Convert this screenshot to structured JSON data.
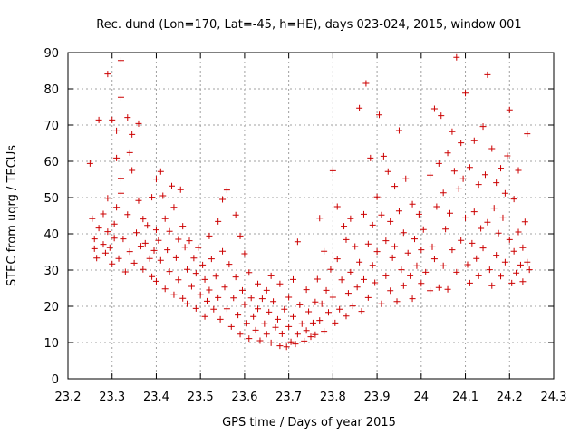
{
  "chart_data": {
    "type": "scatter",
    "title": "Rec. dund (Lon=170, Lat=-45, h=HE), days 023-024, 2015, window 001",
    "xlabel": "GPS time / Days of year 2015",
    "ylabel": "STEC from uqrg / TECUs",
    "xlim": [
      23.2,
      24.3
    ],
    "ylim": [
      0,
      90
    ],
    "xticks": [
      23.2,
      23.3,
      23.4,
      23.5,
      23.6,
      23.7,
      23.8,
      23.9,
      24.0,
      24.1,
      24.2,
      24.3
    ],
    "xtick_labels": [
      "23.2",
      "23.3",
      "23.4",
      "23.5",
      "23.6",
      "23.7",
      "23.8",
      "23.9",
      "24",
      "24.1",
      "24.2",
      "24.3"
    ],
    "yticks": [
      0,
      10,
      20,
      30,
      40,
      50,
      60,
      70,
      80,
      90
    ],
    "ytick_labels": [
      "0",
      "10",
      "20",
      "30",
      "40",
      "50",
      "60",
      "70",
      "80",
      "90"
    ],
    "grid": true,
    "marker": "+",
    "marker_color": "#cc0000",
    "series": [
      {
        "name": "STEC",
        "points": [
          [
            23.25,
            59.4
          ],
          [
            23.255,
            44.2
          ],
          [
            23.26,
            38.6
          ],
          [
            23.26,
            35.9
          ],
          [
            23.265,
            33.3
          ],
          [
            23.27,
            71.4
          ],
          [
            23.27,
            41.6
          ],
          [
            23.28,
            45.5
          ],
          [
            23.28,
            37.1
          ],
          [
            23.285,
            34.7
          ],
          [
            23.29,
            84.1
          ],
          [
            23.29,
            49.8
          ],
          [
            23.29,
            40.6
          ],
          [
            23.295,
            36.2
          ],
          [
            23.3,
            71.4
          ],
          [
            23.3,
            31.7
          ],
          [
            23.305,
            42.7
          ],
          [
            23.305,
            38.8
          ],
          [
            23.31,
            68.4
          ],
          [
            23.31,
            60.9
          ],
          [
            23.31,
            47.3
          ],
          [
            23.315,
            33.2
          ],
          [
            23.32,
            87.8
          ],
          [
            23.32,
            77.7
          ],
          [
            23.32,
            55.3
          ],
          [
            23.32,
            51.2
          ],
          [
            23.325,
            38.6
          ],
          [
            23.33,
            29.5
          ],
          [
            23.335,
            72.1
          ],
          [
            23.335,
            45.3
          ],
          [
            23.34,
            62.4
          ],
          [
            23.34,
            35.1
          ],
          [
            23.345,
            67.4
          ],
          [
            23.345,
            57.5
          ],
          [
            23.35,
            31.9
          ],
          [
            23.355,
            40.3
          ],
          [
            23.36,
            70.4
          ],
          [
            23.36,
            49.2
          ],
          [
            23.365,
            36.6
          ],
          [
            23.37,
            44.1
          ],
          [
            23.37,
            30.2
          ],
          [
            23.375,
            37.4
          ],
          [
            23.38,
            42.3
          ],
          [
            23.385,
            33.2
          ],
          [
            23.39,
            50.1
          ],
          [
            23.39,
            28.2
          ],
          [
            23.395,
            35.4
          ],
          [
            23.4,
            55.1
          ],
          [
            23.4,
            41.1
          ],
          [
            23.4,
            26.9
          ],
          [
            23.405,
            38.2
          ],
          [
            23.41,
            57.2
          ],
          [
            23.41,
            32.7
          ],
          [
            23.415,
            50.5
          ],
          [
            23.42,
            44.2
          ],
          [
            23.42,
            24.8
          ],
          [
            23.425,
            35.6
          ],
          [
            23.43,
            40.7
          ],
          [
            23.43,
            29.6
          ],
          [
            23.435,
            53.2
          ],
          [
            23.44,
            47.3
          ],
          [
            23.44,
            23.2
          ],
          [
            23.445,
            33.4
          ],
          [
            23.45,
            38.5
          ],
          [
            23.45,
            27.3
          ],
          [
            23.455,
            52.2
          ],
          [
            23.46,
            42.1
          ],
          [
            23.46,
            22.2
          ],
          [
            23.465,
            36.3
          ],
          [
            23.47,
            30.2
          ],
          [
            23.47,
            20.7
          ],
          [
            23.475,
            38.1
          ],
          [
            23.48,
            25.5
          ],
          [
            23.485,
            33.3
          ],
          [
            23.49,
            29.1
          ],
          [
            23.49,
            19.4
          ],
          [
            23.495,
            36.2
          ],
          [
            23.5,
            23.2
          ],
          [
            23.505,
            31.4
          ],
          [
            23.51,
            27.4
          ],
          [
            23.51,
            17.2
          ],
          [
            23.515,
            21.4
          ],
          [
            23.52,
            39.4
          ],
          [
            23.52,
            24.5
          ],
          [
            23.525,
            33.1
          ],
          [
            23.53,
            19.2
          ],
          [
            23.535,
            28.3
          ],
          [
            23.54,
            43.4
          ],
          [
            23.54,
            22.4
          ],
          [
            23.545,
            16.4
          ],
          [
            23.55,
            49.5
          ],
          [
            23.55,
            35.2
          ],
          [
            23.555,
            25.3
          ],
          [
            23.56,
            52.1
          ],
          [
            23.56,
            19.3
          ],
          [
            23.565,
            31.6
          ],
          [
            23.57,
            14.4
          ],
          [
            23.575,
            22.3
          ],
          [
            23.58,
            45.2
          ],
          [
            23.58,
            28.1
          ],
          [
            23.585,
            17.6
          ],
          [
            23.59,
            39.4
          ],
          [
            23.59,
            12.3
          ],
          [
            23.595,
            24.4
          ],
          [
            23.6,
            34.5
          ],
          [
            23.6,
            20.5
          ],
          [
            23.605,
            15.3
          ],
          [
            23.61,
            29.3
          ],
          [
            23.61,
            11.1
          ],
          [
            23.615,
            22.3
          ],
          [
            23.62,
            17.2
          ],
          [
            23.625,
            13.4
          ],
          [
            23.63,
            26.2
          ],
          [
            23.63,
            19.3
          ],
          [
            23.635,
            10.5
          ],
          [
            23.64,
            22.1
          ],
          [
            23.645,
            15.2
          ],
          [
            23.65,
            24.4
          ],
          [
            23.65,
            12.3
          ],
          [
            23.655,
            18.4
          ],
          [
            23.66,
            28.4
          ],
          [
            23.66,
            9.9
          ],
          [
            23.665,
            21.3
          ],
          [
            23.67,
            14.2
          ],
          [
            23.675,
            16.4
          ],
          [
            23.68,
            26.2
          ],
          [
            23.68,
            9.1
          ],
          [
            23.685,
            12.4
          ],
          [
            23.69,
            19.2
          ],
          [
            23.695,
            8.8
          ],
          [
            23.7,
            22.5
          ],
          [
            23.7,
            14.4
          ],
          [
            23.705,
            10.2
          ],
          [
            23.71,
            27.4
          ],
          [
            23.71,
            17.2
          ],
          [
            23.715,
            9.6
          ],
          [
            23.72,
            37.8
          ],
          [
            23.72,
            12.3
          ],
          [
            23.725,
            20.4
          ],
          [
            23.73,
            15.2
          ],
          [
            23.735,
            10.4
          ],
          [
            23.74,
            24.6
          ],
          [
            23.74,
            13.3
          ],
          [
            23.745,
            18.5
          ],
          [
            23.75,
            11.6
          ],
          [
            23.755,
            15.4
          ],
          [
            23.76,
            21.2
          ],
          [
            23.76,
            12.2
          ],
          [
            23.765,
            27.5
          ],
          [
            23.77,
            44.3
          ],
          [
            23.77,
            16.1
          ],
          [
            23.775,
            20.7
          ],
          [
            23.78,
            35.2
          ],
          [
            23.78,
            13.1
          ],
          [
            23.785,
            24.4
          ],
          [
            23.79,
            18.3
          ],
          [
            23.795,
            30.2
          ],
          [
            23.8,
            57.4
          ],
          [
            23.8,
            22.5
          ],
          [
            23.805,
            15.4
          ],
          [
            23.81,
            47.5
          ],
          [
            23.81,
            33.1
          ],
          [
            23.815,
            19.2
          ],
          [
            23.82,
            27.3
          ],
          [
            23.825,
            42.1
          ],
          [
            23.83,
            38.4
          ],
          [
            23.83,
            17.3
          ],
          [
            23.835,
            23.6
          ],
          [
            23.84,
            44.2
          ],
          [
            23.84,
            29.4
          ],
          [
            23.845,
            20.1
          ],
          [
            23.85,
            36.5
          ],
          [
            23.855,
            25.3
          ],
          [
            23.86,
            74.7
          ],
          [
            23.86,
            32.2
          ],
          [
            23.865,
            18.6
          ],
          [
            23.87,
            45.4
          ],
          [
            23.87,
            27.4
          ],
          [
            23.875,
            81.5
          ],
          [
            23.88,
            37.2
          ],
          [
            23.88,
            22.4
          ],
          [
            23.885,
            60.9
          ],
          [
            23.89,
            42.4
          ],
          [
            23.89,
            31.3
          ],
          [
            23.895,
            26.5
          ],
          [
            23.9,
            50.2
          ],
          [
            23.9,
            35.1
          ],
          [
            23.905,
            72.8
          ],
          [
            23.91,
            45.2
          ],
          [
            23.91,
            20.7
          ],
          [
            23.915,
            61.4
          ],
          [
            23.92,
            38.1
          ],
          [
            23.92,
            28.4
          ],
          [
            23.925,
            57.2
          ],
          [
            23.93,
            43.4
          ],
          [
            23.93,
            24.3
          ],
          [
            23.935,
            33.4
          ],
          [
            23.94,
            53.1
          ],
          [
            23.94,
            36.5
          ],
          [
            23.945,
            21.3
          ],
          [
            23.95,
            68.5
          ],
          [
            23.95,
            46.3
          ],
          [
            23.955,
            30.1
          ],
          [
            23.96,
            40.3
          ],
          [
            23.96,
            25.7
          ],
          [
            23.965,
            55.2
          ],
          [
            23.97,
            34.7
          ],
          [
            23.975,
            28.4
          ],
          [
            23.98,
            48.2
          ],
          [
            23.98,
            22.1
          ],
          [
            23.985,
            38.6
          ],
          [
            23.99,
            31.2
          ],
          [
            23.995,
            45.4
          ],
          [
            24.0,
            35.6
          ],
          [
            24.0,
            26.3
          ],
          [
            24.005,
            41.2
          ],
          [
            24.01,
            29.4
          ],
          [
            24.02,
            56.2
          ],
          [
            24.02,
            24.3
          ],
          [
            24.025,
            36.4
          ],
          [
            24.03,
            74.5
          ],
          [
            24.03,
            33.1
          ],
          [
            24.035,
            47.5
          ],
          [
            24.04,
            59.4
          ],
          [
            24.04,
            25.2
          ],
          [
            24.045,
            72.6
          ],
          [
            24.05,
            51.3
          ],
          [
            24.05,
            31.2
          ],
          [
            24.055,
            41.3
          ],
          [
            24.06,
            62.3
          ],
          [
            24.06,
            24.7
          ],
          [
            24.065,
            45.7
          ],
          [
            24.07,
            68.2
          ],
          [
            24.07,
            35.6
          ],
          [
            24.075,
            57.3
          ],
          [
            24.08,
            88.7
          ],
          [
            24.08,
            29.4
          ],
          [
            24.085,
            52.4
          ],
          [
            24.09,
            65.1
          ],
          [
            24.09,
            38.2
          ],
          [
            24.095,
            55.2
          ],
          [
            24.1,
            78.8
          ],
          [
            24.1,
            44.4
          ],
          [
            24.105,
            31.5
          ],
          [
            24.11,
            58.3
          ],
          [
            24.11,
            26.4
          ],
          [
            24.115,
            37.4
          ],
          [
            24.12,
            65.7
          ],
          [
            24.12,
            46.1
          ],
          [
            24.125,
            33.2
          ],
          [
            24.13,
            53.6
          ],
          [
            24.13,
            28.4
          ],
          [
            24.135,
            41.5
          ],
          [
            24.14,
            69.6
          ],
          [
            24.14,
            36.1
          ],
          [
            24.145,
            56.3
          ],
          [
            24.15,
            83.9
          ],
          [
            24.15,
            43.2
          ],
          [
            24.155,
            30.1
          ],
          [
            24.16,
            63.5
          ],
          [
            24.16,
            25.7
          ],
          [
            24.165,
            47.1
          ],
          [
            24.17,
            54.1
          ],
          [
            24.17,
            34.1
          ],
          [
            24.175,
            40.2
          ],
          [
            24.18,
            58.1
          ],
          [
            24.18,
            28.3
          ],
          [
            24.185,
            44.4
          ],
          [
            24.19,
            51.2
          ],
          [
            24.19,
            32.2
          ],
          [
            24.195,
            61.5
          ],
          [
            24.2,
            74.2
          ],
          [
            24.2,
            38.4
          ],
          [
            24.205,
            26.4
          ],
          [
            24.21,
            49.6
          ],
          [
            24.21,
            35.2
          ],
          [
            24.215,
            29.2
          ],
          [
            24.22,
            57.5
          ],
          [
            24.22,
            40.5
          ],
          [
            24.225,
            31.4
          ],
          [
            24.23,
            36.2
          ],
          [
            24.23,
            26.8
          ],
          [
            24.235,
            43.3
          ],
          [
            24.24,
            67.6
          ],
          [
            24.24,
            32.2
          ],
          [
            24.245,
            30.1
          ]
        ]
      }
    ]
  }
}
